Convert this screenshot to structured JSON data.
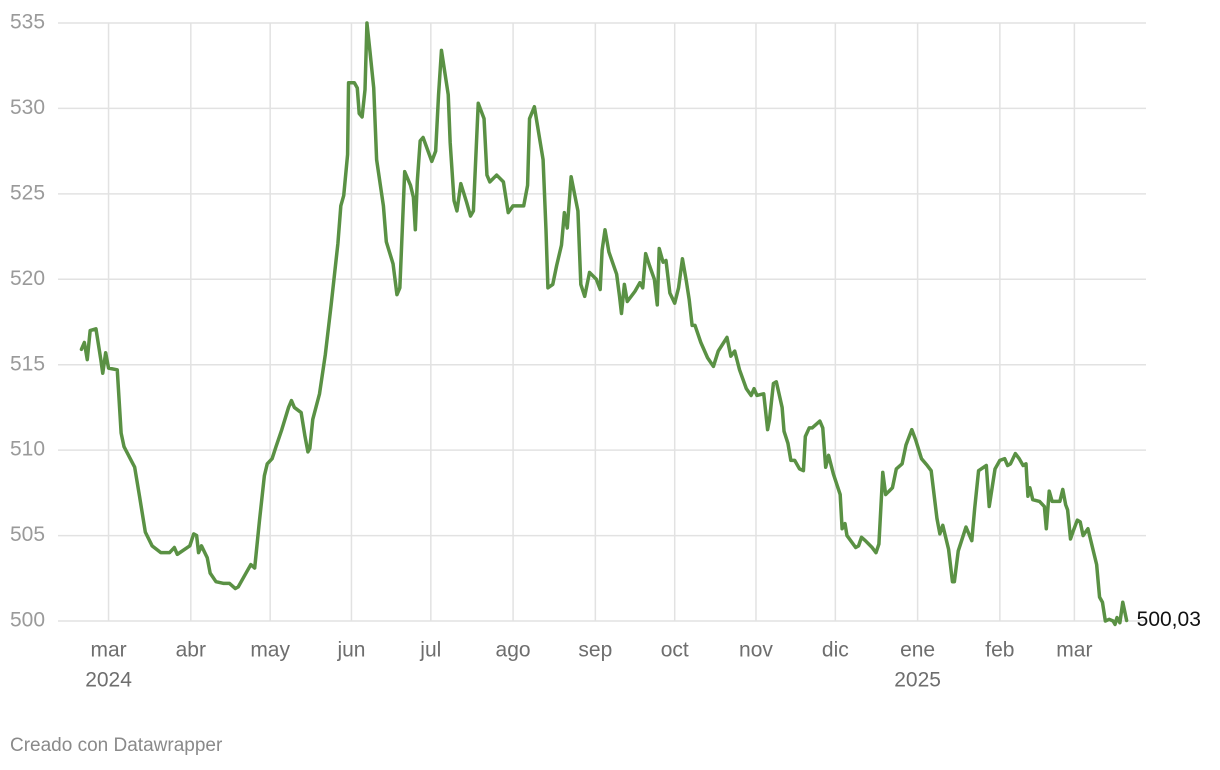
{
  "chart_data": {
    "type": "line",
    "color": "#5a9144",
    "grid": true,
    "x": [
      2024.136,
      2024.139,
      2024.142,
      2024.145,
      2024.151,
      2024.156,
      2024.158,
      2024.161,
      2024.164,
      2024.173,
      2024.177,
      2024.18,
      2024.191,
      2024.196,
      2024.202,
      2024.209,
      2024.218,
      2024.227,
      2024.232,
      2024.235,
      2024.248,
      2024.252,
      2024.255,
      2024.257,
      2024.26,
      2024.266,
      2024.269,
      2024.275,
      2024.283,
      2024.289,
      2024.295,
      2024.298,
      2024.307,
      2024.311,
      2024.315,
      2024.32,
      2024.325,
      2024.328,
      2024.333,
      2024.337,
      2024.343,
      2024.35,
      2024.353,
      2024.356,
      2024.363,
      2024.367,
      2024.37,
      2024.372,
      2024.375,
      2024.382,
      2024.388,
      2024.394,
      2024.401,
      2024.404,
      2024.407,
      2024.411,
      2024.412,
      2024.418,
      2024.421,
      2024.423,
      2024.426,
      2024.429,
      2024.431,
      2024.434,
      2024.438,
      2024.441,
      2024.448,
      2024.451,
      2024.458,
      2024.462,
      2024.465,
      2024.47,
      2024.476,
      2024.479,
      2024.481,
      2024.483,
      2024.486,
      2024.489,
      2024.498,
      2024.502,
      2024.505,
      2024.508,
      2024.515,
      2024.517,
      2024.521,
      2024.524,
      2024.528,
      2024.534,
      2024.538,
      2024.541,
      2024.546,
      2024.552,
      2024.555,
      2024.558,
      2024.565,
      2024.572,
      2024.577,
      2024.582,
      2024.593,
      2024.597,
      2024.599,
      2024.604,
      2024.613,
      2024.616,
      2024.618,
      2024.623,
      2024.627,
      2024.632,
      2024.635,
      2024.638,
      2024.642,
      2024.649,
      2024.652,
      2024.656,
      2024.661,
      2024.668,
      2024.672,
      2024.674,
      2024.677,
      2024.681,
      2024.689,
      2024.692,
      2024.694,
      2024.697,
      2024.7,
      2024.708,
      2024.713,
      2024.716,
      2024.719,
      2024.723,
      2024.728,
      2024.731,
      2024.733,
      2024.737,
      2024.74,
      2024.744,
      2024.749,
      2024.753,
      2024.757,
      2024.761,
      2024.764,
      2024.767,
      2024.77,
      2024.776,
      2024.783,
      2024.789,
      2024.794,
      2024.803,
      2024.807,
      2024.811,
      2024.816,
      2024.823,
      2024.828,
      2024.831,
      2024.834,
      2024.841,
      2024.845,
      2024.847,
      2024.851,
      2024.854,
      2024.86,
      2024.862,
      2024.866,
      2024.869,
      2024.873,
      2024.878,
      2024.882,
      2024.884,
      2024.888,
      2024.891,
      2024.899,
      2024.902,
      2024.905,
      2024.908,
      2024.913,
      2024.92,
      2024.922,
      2024.925,
      2024.927,
      2024.936,
      2024.939,
      2024.942,
      2024.946,
      2024.953,
      2024.957,
      2024.96,
      2024.964,
      2024.967,
      2024.974,
      2024.978,
      2024.984,
      2024.988,
      2024.994,
      2024.998,
      2025.004,
      2025.01,
      2025.014,
      2025.02,
      2025.023,
      2025.026,
      2025.032,
      2025.036,
      2025.038,
      2025.042,
      2025.05,
      2025.056,
      2025.059,
      2025.063,
      2025.071,
      2025.074,
      2025.08,
      2025.085,
      2025.09,
      2025.093,
      2025.096,
      2025.101,
      2025.105,
      2025.109,
      2025.112,
      2025.114,
      2025.116,
      2025.119,
      2025.126,
      2025.131,
      2025.133,
      2025.136,
      2025.139,
      2025.147,
      2025.15,
      2025.153,
      2025.155,
      2025.158,
      2025.161,
      2025.165,
      2025.168,
      2025.171,
      2025.176,
      2025.185,
      2025.188,
      2025.191,
      2025.194,
      2025.198,
      2025.202,
      2025.204,
      2025.206,
      2025.209,
      2025.212,
      2025.216
    ],
    "values": [
      515.9,
      516.3,
      515.3,
      517.0,
      517.1,
      515.3,
      514.5,
      515.7,
      514.8,
      514.7,
      511.0,
      510.2,
      509.0,
      507.3,
      505.2,
      504.4,
      504.0,
      504.0,
      504.3,
      503.9,
      504.4,
      505.1,
      505.0,
      504.0,
      504.4,
      503.7,
      502.8,
      502.3,
      502.2,
      502.2,
      501.9,
      502.0,
      502.9,
      503.3,
      503.1,
      505.9,
      508.5,
      509.2,
      509.5,
      510.2,
      511.2,
      512.5,
      512.9,
      512.5,
      512.2,
      510.8,
      509.9,
      510.1,
      511.8,
      513.3,
      515.6,
      518.5,
      522.1,
      524.3,
      524.9,
      527.3,
      531.5,
      531.5,
      531.2,
      529.7,
      529.5,
      531.1,
      535.0,
      533.4,
      531.2,
      527.0,
      524.3,
      522.2,
      520.9,
      519.1,
      519.5,
      526.3,
      525.5,
      524.8,
      522.9,
      525.7,
      528.1,
      528.3,
      526.9,
      527.5,
      530.8,
      533.4,
      530.8,
      528.0,
      524.6,
      524.0,
      525.6,
      524.5,
      523.7,
      524.0,
      530.3,
      529.4,
      526.1,
      525.7,
      526.1,
      525.7,
      523.9,
      524.3,
      524.3,
      525.5,
      529.4,
      530.1,
      527.0,
      522.9,
      519.5,
      519.7,
      520.8,
      522.0,
      523.9,
      523.0,
      526.0,
      524.0,
      519.7,
      519.0,
      520.4,
      520.0,
      519.4,
      521.7,
      522.9,
      521.6,
      520.3,
      519.0,
      518.0,
      519.7,
      518.7,
      519.3,
      519.8,
      519.5,
      521.5,
      520.8,
      520.0,
      518.5,
      521.8,
      521.0,
      521.1,
      519.2,
      518.6,
      519.5,
      521.2,
      519.9,
      518.8,
      517.3,
      517.3,
      516.3,
      515.4,
      514.9,
      515.8,
      516.6,
      515.5,
      515.8,
      514.7,
      513.6,
      513.2,
      513.6,
      513.2,
      513.3,
      511.2,
      511.8,
      513.9,
      514.0,
      512.5,
      511.1,
      510.4,
      509.4,
      509.4,
      508.9,
      508.8,
      510.8,
      511.3,
      511.3,
      511.7,
      511.3,
      509.0,
      509.7,
      508.6,
      507.4,
      505.4,
      505.7,
      505.0,
      504.3,
      504.4,
      504.9,
      504.7,
      504.3,
      504.0,
      504.5,
      508.7,
      507.4,
      507.8,
      508.9,
      509.2,
      510.3,
      511.2,
      510.6,
      509.5,
      509.1,
      508.8,
      506.0,
      505.1,
      505.6,
      504.2,
      502.3,
      502.3,
      504.1,
      505.5,
      504.7,
      506.6,
      508.8,
      509.1,
      506.7,
      508.9,
      509.4,
      509.5,
      509.1,
      509.2,
      509.8,
      509.5,
      509.1,
      509.2,
      507.3,
      507.8,
      507.1,
      507.0,
      506.7,
      505.4,
      507.6,
      507.0,
      507.0,
      507.7,
      506.8,
      506.5,
      504.8,
      505.3,
      505.9,
      505.8,
      505.0,
      505.4,
      503.3,
      501.4,
      501.1,
      500.0,
      500.1,
      500.0,
      499.8,
      500.2,
      499.9,
      501.1,
      500.03
    ],
    "value_labels": [
      null,
      null,
      null,
      null,
      null,
      null,
      null,
      null,
      null,
      null,
      null,
      null,
      null,
      null,
      null,
      null,
      null,
      null,
      null,
      null,
      null,
      null,
      null,
      null,
      null,
      null,
      null,
      null,
      null,
      null,
      null,
      null,
      null,
      null,
      null,
      null,
      null,
      null,
      null,
      null,
      null,
      null,
      null,
      null,
      null,
      null,
      null,
      null,
      null,
      null,
      null,
      null,
      null,
      null,
      null,
      null,
      null,
      null,
      null,
      null,
      null,
      null,
      null,
      null,
      null,
      null,
      null,
      null,
      null,
      null,
      null,
      null,
      null,
      null,
      null,
      null,
      null,
      null,
      null,
      null,
      null,
      null,
      null,
      null,
      null,
      null,
      null,
      null,
      null,
      null,
      null,
      null,
      null,
      null,
      null,
      null,
      null,
      null,
      null,
      null,
      null,
      null,
      null,
      null,
      null,
      null,
      null,
      null,
      null,
      null,
      null,
      null,
      null,
      null,
      null,
      null,
      null,
      null,
      null,
      null,
      null,
      null,
      null,
      null,
      null,
      null,
      null,
      null,
      null,
      null,
      null,
      null,
      null,
      null,
      null,
      null,
      null,
      null,
      null,
      null,
      null,
      null,
      null,
      null,
      null,
      null,
      null,
      null,
      null,
      null,
      null,
      null,
      null,
      null,
      null,
      null,
      null,
      null,
      null,
      null,
      null,
      null,
      null,
      null,
      null,
      null,
      null,
      null,
      null,
      null,
      null,
      null,
      null,
      null,
      null,
      null,
      null,
      null,
      null,
      null,
      null,
      null,
      null,
      null,
      null,
      null,
      null,
      null,
      null,
      null,
      null,
      null,
      null,
      null,
      null,
      null,
      null,
      null,
      null,
      null,
      null,
      null,
      null,
      null,
      null,
      null,
      null,
      null,
      null,
      null,
      null,
      null,
      null,
      null,
      null,
      null,
      null,
      null,
      null,
      null,
      null,
      null,
      null,
      null,
      null,
      null,
      null,
      null,
      null,
      null,
      null,
      null,
      null,
      null,
      null,
      null,
      null,
      null,
      null,
      null,
      null,
      null,
      null,
      null,
      null,
      null,
      null,
      "500,03"
    ],
    "xlim": [
      2024.088,
      2025.236
    ],
    "xticks": [
      {
        "value": 2024.164,
        "label": "mar"
      },
      {
        "value": 2024.249,
        "label": "abr"
      },
      {
        "value": 2024.331,
        "label": "may"
      },
      {
        "value": 2024.415,
        "label": "jun"
      },
      {
        "value": 2024.497,
        "label": "jul"
      },
      {
        "value": 2024.582,
        "label": "ago"
      },
      {
        "value": 2024.667,
        "label": "sep"
      },
      {
        "value": 2024.749,
        "label": "oct"
      },
      {
        "value": 2024.833,
        "label": "nov"
      },
      {
        "value": 2024.915,
        "label": "dic"
      },
      {
        "value": 2025.0,
        "label": "ene"
      },
      {
        "value": 2025.085,
        "label": "feb"
      },
      {
        "value": 2025.162,
        "label": "mar"
      }
    ],
    "x_year_labels": [
      {
        "value": 2024.164,
        "label": "2024"
      },
      {
        "value": 2025.0,
        "label": "2025"
      }
    ],
    "ylim": [
      500,
      535
    ],
    "yticks": [
      500,
      505,
      510,
      515,
      520,
      525,
      530,
      535
    ],
    "footer": "Creado con Datawrapper"
  }
}
